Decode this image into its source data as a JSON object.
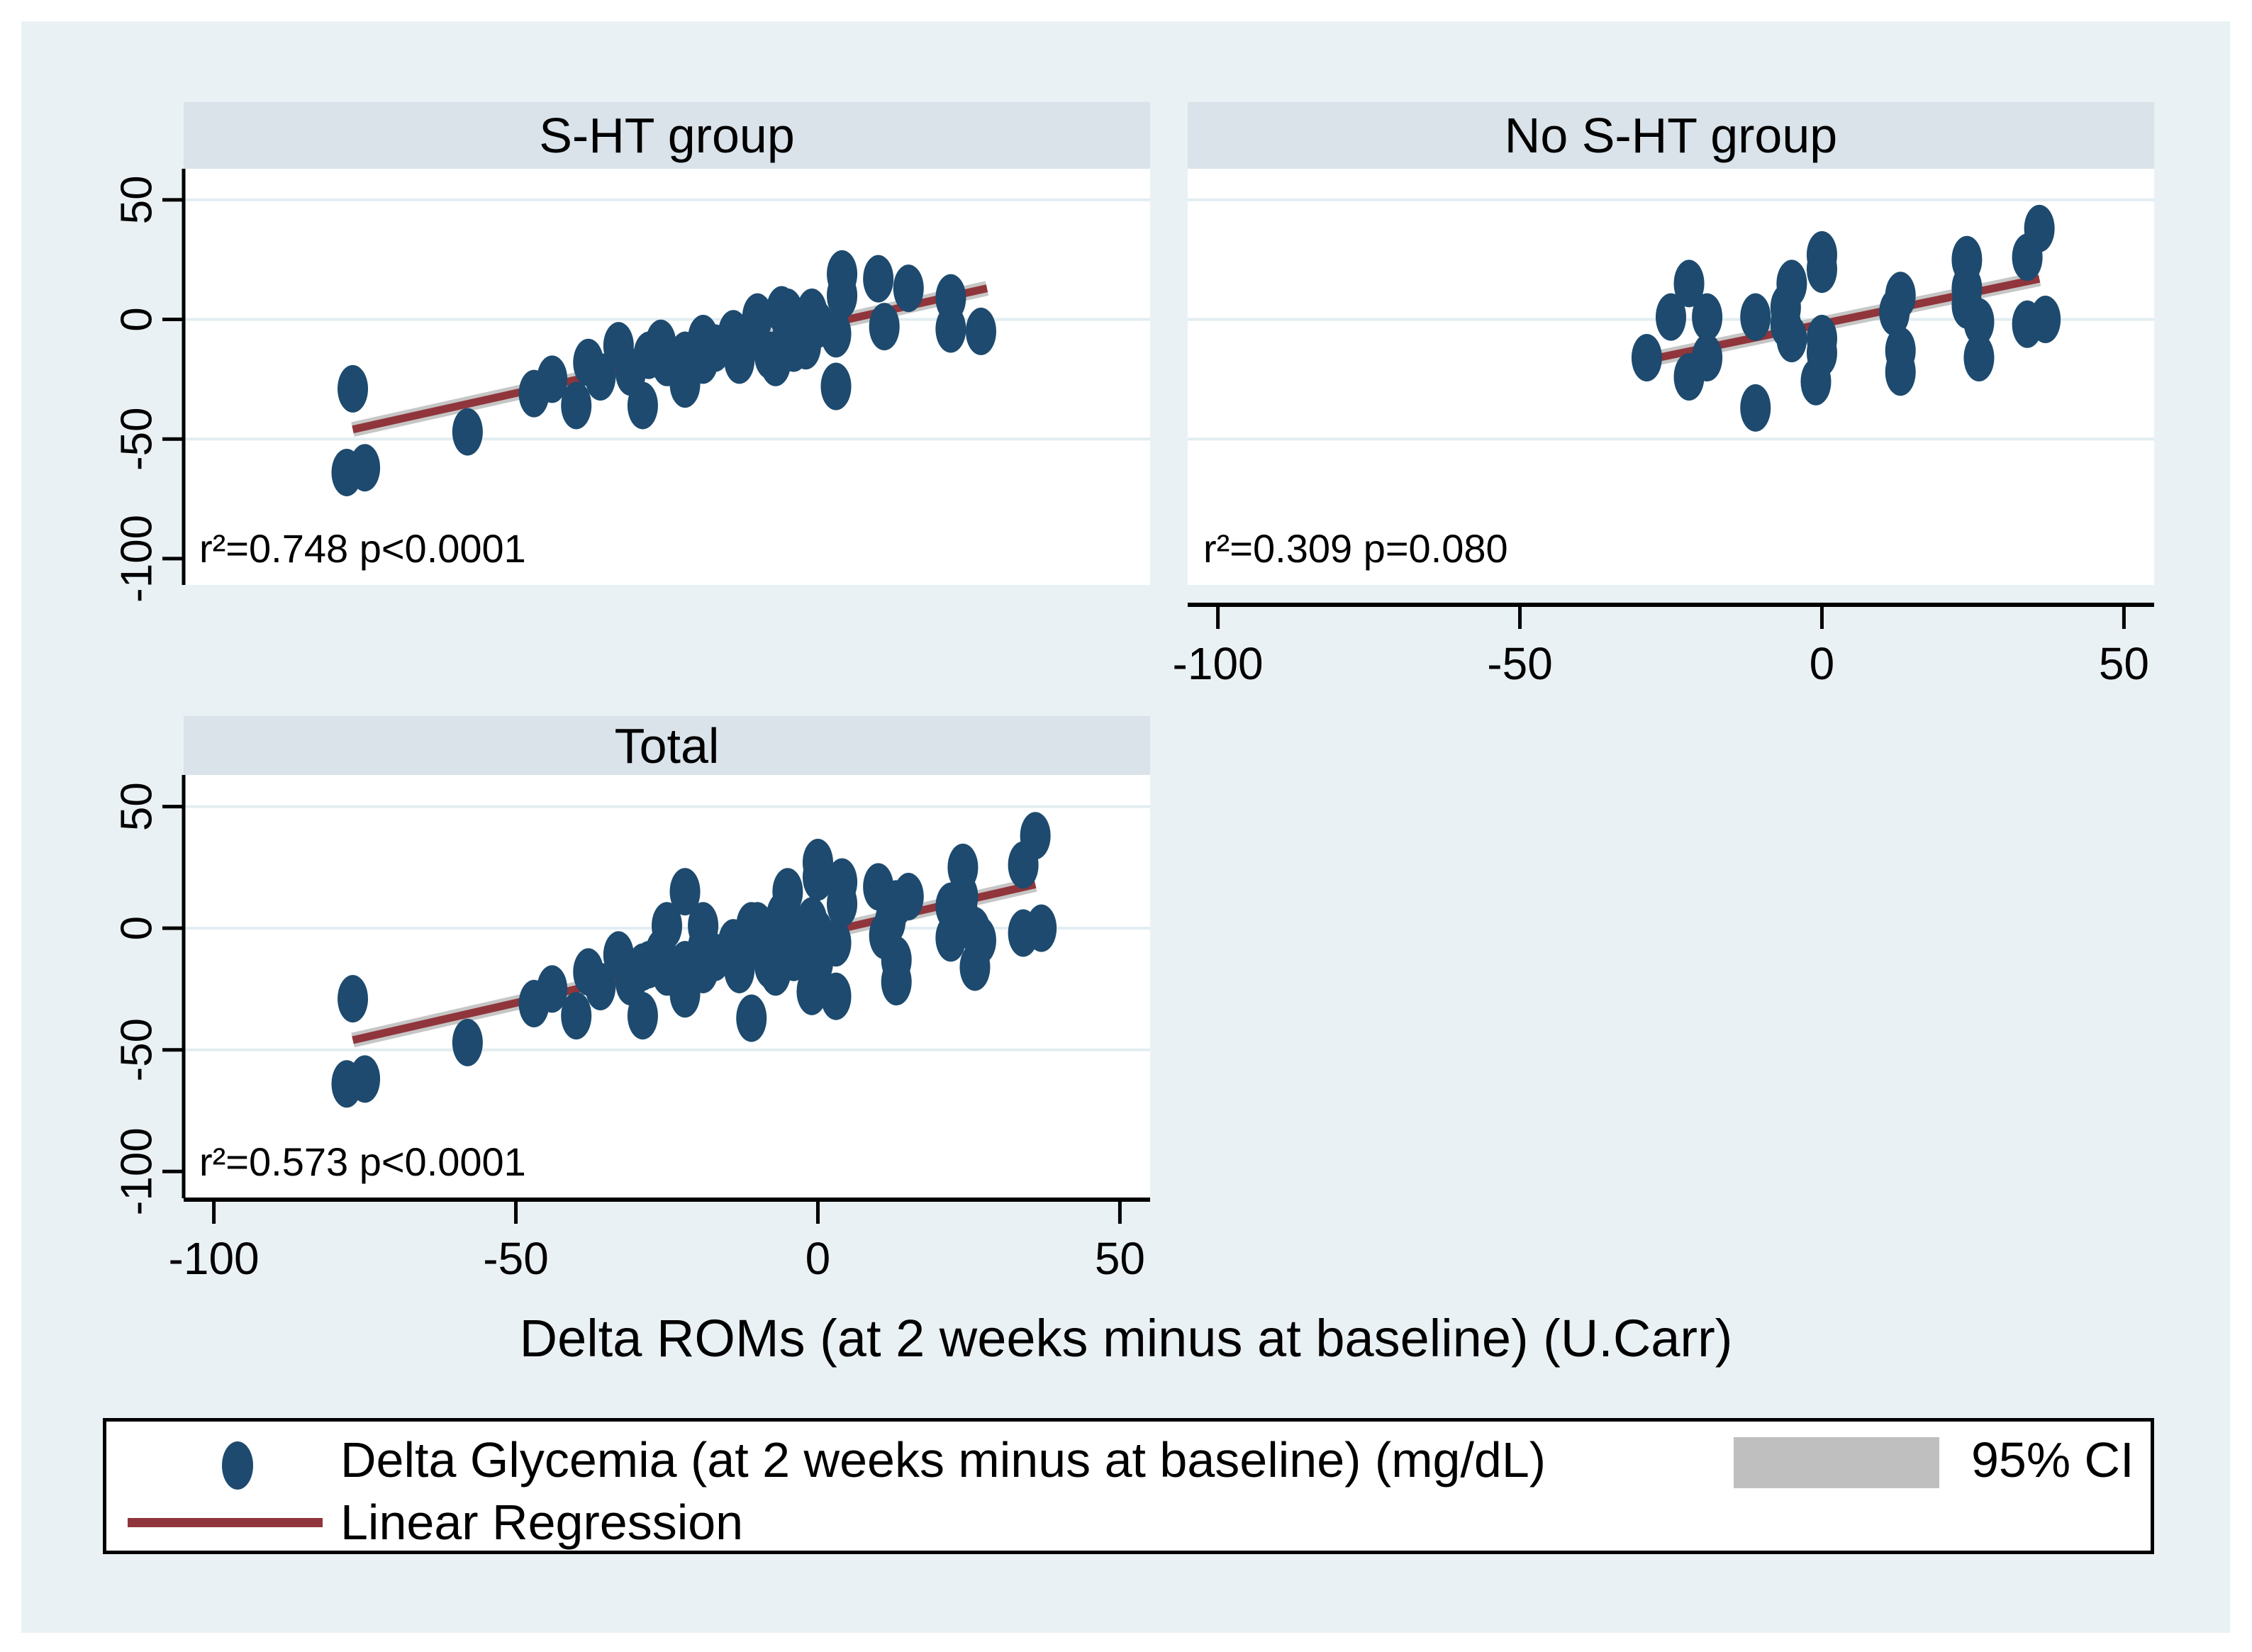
{
  "colors": {
    "page_background": "#ffffff",
    "graph_region": "#eaf1f4",
    "panel_title_bg": "#dae3ea",
    "plot_background": "#ffffff",
    "gridline": "#e2edf2",
    "scatter": "#1d4a6e",
    "regression": "#90353b",
    "ci_band": "#c6c6c6",
    "ci_swatch": "#bfbfbf",
    "axis": "#000000",
    "text": "#000000"
  },
  "xlabel": "Delta ROMs (at 2 weeks minus at baseline) (U.Carr)",
  "legend": {
    "scatter_label": "Delta Glycemia (at 2 weeks minus at baseline) (mg/dL)",
    "ci_label": "95% CI",
    "line_label": "Linear Regression",
    "position": "bottom"
  },
  "chart_data": [
    {
      "type": "scatter",
      "title": "S-HT group",
      "annotation": "r²=0.748  p<0.0001",
      "xlabel": "Delta ROMs (at 2 weeks minus at baseline) (U.Carr)",
      "ylabel": "Delta Glycemia (at 2 weeks minus at baseline) (mg/dL)",
      "xlim": [
        -105,
        55
      ],
      "ylim": [
        -111,
        63
      ],
      "xticks": [
        -100,
        -50,
        0,
        50
      ],
      "yticks": [
        50,
        0,
        -50,
        -100
      ],
      "gridlines": [
        50,
        0,
        -50
      ],
      "show_xaxis": false,
      "show_yaxis": true,
      "grid": true,
      "series": [
        {
          "name": "Delta Glycemia (at 2 weeks minus at baseline) (mg/dL)",
          "points": [
            [
              -78,
              -64
            ],
            [
              -75,
              -62
            ],
            [
              -77,
              -29
            ],
            [
              -58,
              -47
            ],
            [
              -47,
              -31
            ],
            [
              -44,
              -25
            ],
            [
              -40,
              -36
            ],
            [
              -38,
              -18
            ],
            [
              -36,
              -24
            ],
            [
              -33,
              -11
            ],
            [
              -31,
              -22
            ],
            [
              -29,
              -36
            ],
            [
              -28,
              -15
            ],
            [
              -26,
              -10
            ],
            [
              -25,
              -18
            ],
            [
              -23,
              -20
            ],
            [
              -22,
              -27
            ],
            [
              -22,
              -15
            ],
            [
              -19,
              -17
            ],
            [
              -19,
              -8
            ],
            [
              -17,
              -12
            ],
            [
              -14,
              -6
            ],
            [
              -13,
              -17
            ],
            [
              -11,
              -6
            ],
            [
              -10,
              1
            ],
            [
              -8,
              -15
            ],
            [
              -7,
              -18
            ],
            [
              -6,
              4
            ],
            [
              -5,
              3
            ],
            [
              -5,
              -7
            ],
            [
              -4,
              -12
            ],
            [
              -2,
              -11
            ],
            [
              -1,
              3
            ],
            [
              0,
              -2
            ],
            [
              3,
              -6
            ],
            [
              3,
              -28
            ],
            [
              4,
              19
            ],
            [
              4,
              10
            ],
            [
              10,
              17
            ],
            [
              11,
              -3
            ],
            [
              15,
              13
            ],
            [
              22,
              9
            ],
            [
              22,
              -4
            ],
            [
              27,
              -5
            ]
          ]
        },
        {
          "name": "Linear Regression",
          "line": {
            "x1": -77,
            "y1": -46,
            "x2": 28,
            "y2": 13
          }
        }
      ]
    },
    {
      "type": "scatter",
      "title": "No S-HT group",
      "annotation": "r²=0.309  p=0.080",
      "xlabel": "Delta ROMs (at 2 weeks minus at baseline) (U.Carr)",
      "ylabel": "Delta Glycemia (at 2 weeks minus at baseline) (mg/dL)",
      "xlim": [
        -105,
        55
      ],
      "ylim": [
        -111,
        63
      ],
      "xticks": [
        -100,
        -50,
        0,
        50
      ],
      "yticks": [
        50,
        0,
        -50,
        -100
      ],
      "gridlines": [
        50,
        0,
        -50
      ],
      "show_xaxis": true,
      "show_yaxis": false,
      "grid": true,
      "series": [
        {
          "name": "Delta Glycemia (at 2 weeks minus at baseline) (mg/dL)",
          "points": [
            [
              -29,
              -16
            ],
            [
              -25,
              1
            ],
            [
              -22,
              15
            ],
            [
              -22,
              -24
            ],
            [
              -19,
              1
            ],
            [
              -19,
              -16
            ],
            [
              -11,
              1
            ],
            [
              -11,
              -37
            ],
            [
              -6,
              5
            ],
            [
              -6,
              -2
            ],
            [
              -5,
              15
            ],
            [
              -5,
              -8
            ],
            [
              -1,
              -26
            ],
            [
              0,
              27
            ],
            [
              0,
              21
            ],
            [
              0,
              -8
            ],
            [
              0,
              -14
            ],
            [
              12,
              3
            ],
            [
              13,
              10
            ],
            [
              13,
              -13
            ],
            [
              13,
              -22
            ],
            [
              24,
              25
            ],
            [
              24,
              13
            ],
            [
              24,
              6
            ],
            [
              26,
              -1
            ],
            [
              26,
              -16
            ],
            [
              34,
              26
            ],
            [
              34,
              -2
            ],
            [
              36,
              38
            ],
            [
              37,
              0
            ]
          ]
        },
        {
          "name": "Linear Regression",
          "line": {
            "x1": -29,
            "y1": -17,
            "x2": 36,
            "y2": 17
          }
        }
      ]
    },
    {
      "type": "scatter",
      "title": "Total",
      "annotation": "r²=0.573  p<0.0001",
      "xlabel": "Delta ROMs (at 2 weeks minus at baseline) (U.Carr)",
      "ylabel": "Delta Glycemia (at 2 weeks minus at baseline) (mg/dL)",
      "xlim": [
        -105,
        55
      ],
      "ylim": [
        -111,
        63
      ],
      "xticks": [
        -100,
        -50,
        0,
        50
      ],
      "yticks": [
        50,
        0,
        -50,
        -100
      ],
      "gridlines": [
        50,
        0,
        -50
      ],
      "show_xaxis": true,
      "show_yaxis": true,
      "grid": true,
      "series": [
        {
          "name": "Delta Glycemia (at 2 weeks minus at baseline) (mg/dL)",
          "points": [
            [
              -78,
              -64
            ],
            [
              -75,
              -62
            ],
            [
              -77,
              -29
            ],
            [
              -58,
              -47
            ],
            [
              -47,
              -31
            ],
            [
              -44,
              -25
            ],
            [
              -40,
              -36
            ],
            [
              -38,
              -18
            ],
            [
              -36,
              -24
            ],
            [
              -33,
              -11
            ],
            [
              -31,
              -22
            ],
            [
              -29,
              -36
            ],
            [
              -28,
              -15
            ],
            [
              -26,
              -10
            ],
            [
              -25,
              -18
            ],
            [
              -23,
              -20
            ],
            [
              -22,
              -27
            ],
            [
              -22,
              -15
            ],
            [
              -19,
              -17
            ],
            [
              -19,
              -8
            ],
            [
              -17,
              -12
            ],
            [
              -14,
              -6
            ],
            [
              -13,
              -17
            ],
            [
              -11,
              -6
            ],
            [
              -10,
              1
            ],
            [
              -8,
              -15
            ],
            [
              -7,
              -18
            ],
            [
              -6,
              4
            ],
            [
              -5,
              3
            ],
            [
              -5,
              -7
            ],
            [
              -4,
              -12
            ],
            [
              -2,
              -11
            ],
            [
              -1,
              3
            ],
            [
              0,
              -2
            ],
            [
              3,
              -6
            ],
            [
              3,
              -28
            ],
            [
              4,
              19
            ],
            [
              4,
              10
            ],
            [
              10,
              17
            ],
            [
              11,
              -3
            ],
            [
              15,
              13
            ],
            [
              22,
              9
            ],
            [
              22,
              -4
            ],
            [
              27,
              -5
            ],
            [
              -29,
              -16
            ],
            [
              -25,
              1
            ],
            [
              -22,
              15
            ],
            [
              -22,
              -24
            ],
            [
              -19,
              1
            ],
            [
              -19,
              -16
            ],
            [
              -11,
              1
            ],
            [
              -11,
              -37
            ],
            [
              -6,
              5
            ],
            [
              -6,
              -2
            ],
            [
              -5,
              15
            ],
            [
              -5,
              -8
            ],
            [
              -1,
              -26
            ],
            [
              0,
              27
            ],
            [
              0,
              21
            ],
            [
              0,
              -8
            ],
            [
              0,
              -14
            ],
            [
              12,
              3
            ],
            [
              13,
              10
            ],
            [
              13,
              -13
            ],
            [
              13,
              -22
            ],
            [
              24,
              25
            ],
            [
              24,
              13
            ],
            [
              24,
              6
            ],
            [
              26,
              -1
            ],
            [
              26,
              -16
            ],
            [
              34,
              26
            ],
            [
              34,
              -2
            ],
            [
              36,
              38
            ],
            [
              37,
              0
            ]
          ]
        },
        {
          "name": "Linear Regression",
          "line": {
            "x1": -77,
            "y1": -46,
            "x2": 36,
            "y2": 18
          }
        }
      ]
    }
  ]
}
